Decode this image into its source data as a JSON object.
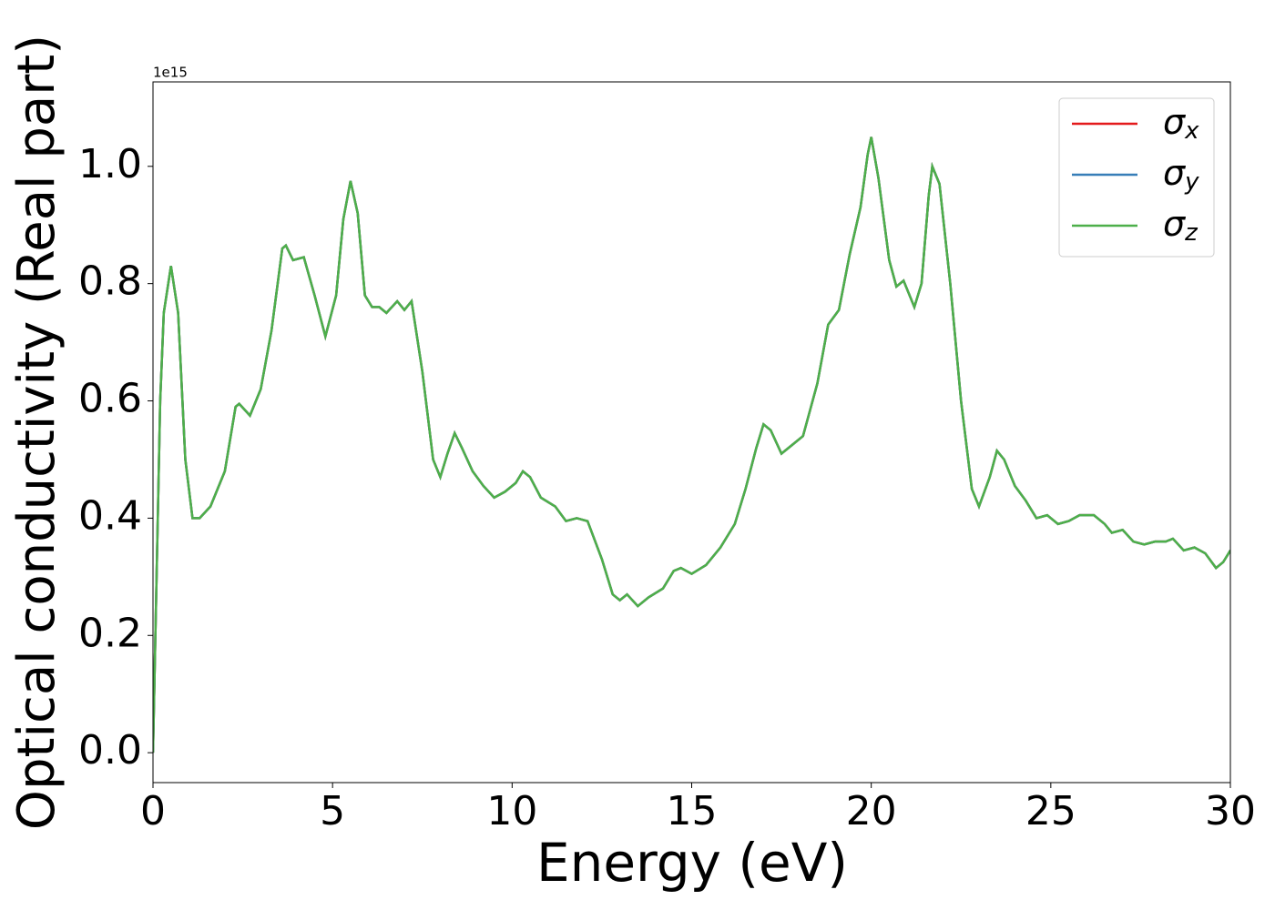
{
  "chart_data": {
    "type": "line",
    "xlabel": "Energy (eV)",
    "ylabel": "Optical conductivity (Real part)",
    "offset_label": "1e15",
    "xlim": [
      0,
      30
    ],
    "xticks": [
      0,
      5,
      10,
      15,
      20,
      25,
      30
    ],
    "ylim": [
      -0.051,
      1.144
    ],
    "yticks": [
      {
        "value": 0,
        "label": "0.0"
      },
      {
        "value": 0.2,
        "label": "0.2"
      },
      {
        "value": 0.4,
        "label": "0.4"
      },
      {
        "value": 0.6,
        "label": "0.6"
      },
      {
        "value": 0.8,
        "label": "0.8"
      },
      {
        "value": 1.0,
        "label": "1.0"
      }
    ],
    "legend": "upper right",
    "x": [
      0,
      0.1,
      0.2,
      0.3,
      0.5,
      0.7,
      0.9,
      1.1,
      1.3,
      1.6,
      2.0,
      2.3,
      2.4,
      2.7,
      3.0,
      3.3,
      3.6,
      3.7,
      3.9,
      4.2,
      4.5,
      4.8,
      5.1,
      5.3,
      5.5,
      5.7,
      5.9,
      6.1,
      6.3,
      6.5,
      6.8,
      7.0,
      7.2,
      7.5,
      7.8,
      8.0,
      8.2,
      8.4,
      8.6,
      8.9,
      9.2,
      9.5,
      9.8,
      10.1,
      10.3,
      10.5,
      10.8,
      11.2,
      11.5,
      11.8,
      12.1,
      12.5,
      12.8,
      13.0,
      13.2,
      13.5,
      13.8,
      14.2,
      14.5,
      14.7,
      15.0,
      15.4,
      15.8,
      16.2,
      16.5,
      16.8,
      17.0,
      17.2,
      17.5,
      17.8,
      18.1,
      18.5,
      18.8,
      19.1,
      19.4,
      19.7,
      19.9,
      20.0,
      20.2,
      20.5,
      20.7,
      20.9,
      21.2,
      21.4,
      21.6,
      21.7,
      21.9,
      22.2,
      22.5,
      22.8,
      23.0,
      23.3,
      23.5,
      23.7,
      24.0,
      24.3,
      24.6,
      24.9,
      25.2,
      25.5,
      25.8,
      26.2,
      26.5,
      26.7,
      27.0,
      27.3,
      27.6,
      27.9,
      28.2,
      28.4,
      28.7,
      29.0,
      29.3,
      29.6,
      29.8,
      30.0
    ],
    "series": [
      {
        "name": "σx",
        "color": "#e41a1c",
        "values": [
          0,
          0.3,
          0.6,
          0.75,
          0.83,
          0.75,
          0.5,
          0.4,
          0.4,
          0.42,
          0.48,
          0.59,
          0.595,
          0.575,
          0.62,
          0.72,
          0.86,
          0.865,
          0.84,
          0.845,
          0.78,
          0.71,
          0.78,
          0.91,
          0.975,
          0.92,
          0.78,
          0.76,
          0.76,
          0.75,
          0.77,
          0.755,
          0.77,
          0.65,
          0.5,
          0.47,
          0.51,
          0.545,
          0.52,
          0.48,
          0.455,
          0.435,
          0.445,
          0.46,
          0.48,
          0.47,
          0.435,
          0.42,
          0.395,
          0.4,
          0.395,
          0.33,
          0.27,
          0.26,
          0.27,
          0.25,
          0.265,
          0.28,
          0.31,
          0.315,
          0.305,
          0.32,
          0.35,
          0.39,
          0.45,
          0.52,
          0.56,
          0.55,
          0.51,
          0.525,
          0.54,
          0.63,
          0.73,
          0.755,
          0.85,
          0.93,
          1.02,
          1.05,
          0.98,
          0.84,
          0.795,
          0.805,
          0.76,
          0.8,
          0.95,
          1.0,
          0.97,
          0.8,
          0.6,
          0.45,
          0.42,
          0.47,
          0.515,
          0.5,
          0.455,
          0.43,
          0.4,
          0.405,
          0.39,
          0.395,
          0.405,
          0.405,
          0.39,
          0.375,
          0.38,
          0.36,
          0.355,
          0.36,
          0.36,
          0.365,
          0.345,
          0.35,
          0.34,
          0.315,
          0.325,
          0.345
        ]
      },
      {
        "name": "σy",
        "color": "#377eb8",
        "values": [
          0,
          0.3,
          0.6,
          0.75,
          0.83,
          0.75,
          0.5,
          0.4,
          0.4,
          0.42,
          0.48,
          0.59,
          0.595,
          0.575,
          0.62,
          0.72,
          0.86,
          0.865,
          0.84,
          0.845,
          0.78,
          0.71,
          0.78,
          0.91,
          0.975,
          0.92,
          0.78,
          0.76,
          0.76,
          0.75,
          0.77,
          0.755,
          0.77,
          0.65,
          0.5,
          0.47,
          0.51,
          0.545,
          0.52,
          0.48,
          0.455,
          0.435,
          0.445,
          0.46,
          0.48,
          0.47,
          0.435,
          0.42,
          0.395,
          0.4,
          0.395,
          0.33,
          0.27,
          0.26,
          0.27,
          0.25,
          0.265,
          0.28,
          0.31,
          0.315,
          0.305,
          0.32,
          0.35,
          0.39,
          0.45,
          0.52,
          0.56,
          0.55,
          0.51,
          0.525,
          0.54,
          0.63,
          0.73,
          0.755,
          0.85,
          0.93,
          1.02,
          1.05,
          0.98,
          0.84,
          0.795,
          0.805,
          0.76,
          0.8,
          0.95,
          1.0,
          0.97,
          0.8,
          0.6,
          0.45,
          0.42,
          0.47,
          0.515,
          0.5,
          0.455,
          0.43,
          0.4,
          0.405,
          0.39,
          0.395,
          0.405,
          0.405,
          0.39,
          0.375,
          0.38,
          0.36,
          0.355,
          0.36,
          0.36,
          0.365,
          0.345,
          0.35,
          0.34,
          0.315,
          0.325,
          0.345
        ]
      },
      {
        "name": "σz",
        "color": "#4daf4a",
        "values": [
          0,
          0.3,
          0.6,
          0.75,
          0.83,
          0.75,
          0.5,
          0.4,
          0.4,
          0.42,
          0.48,
          0.59,
          0.595,
          0.575,
          0.62,
          0.72,
          0.86,
          0.865,
          0.84,
          0.845,
          0.78,
          0.71,
          0.78,
          0.91,
          0.975,
          0.92,
          0.78,
          0.76,
          0.76,
          0.75,
          0.77,
          0.755,
          0.77,
          0.65,
          0.5,
          0.47,
          0.51,
          0.545,
          0.52,
          0.48,
          0.455,
          0.435,
          0.445,
          0.46,
          0.48,
          0.47,
          0.435,
          0.42,
          0.395,
          0.4,
          0.395,
          0.33,
          0.27,
          0.26,
          0.27,
          0.25,
          0.265,
          0.28,
          0.31,
          0.315,
          0.305,
          0.32,
          0.35,
          0.39,
          0.45,
          0.52,
          0.56,
          0.55,
          0.51,
          0.525,
          0.54,
          0.63,
          0.73,
          0.755,
          0.85,
          0.93,
          1.02,
          1.05,
          0.98,
          0.84,
          0.795,
          0.805,
          0.76,
          0.8,
          0.95,
          1.0,
          0.97,
          0.8,
          0.6,
          0.45,
          0.42,
          0.47,
          0.515,
          0.5,
          0.455,
          0.43,
          0.4,
          0.405,
          0.39,
          0.395,
          0.405,
          0.405,
          0.39,
          0.375,
          0.38,
          0.36,
          0.355,
          0.36,
          0.36,
          0.365,
          0.345,
          0.35,
          0.34,
          0.315,
          0.325,
          0.345
        ]
      }
    ]
  }
}
